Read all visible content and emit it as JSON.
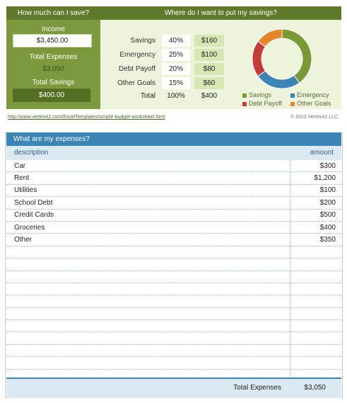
{
  "savings_panel": {
    "title": "How much can I save?",
    "income_label": "Income",
    "income_value": "$3,450.00",
    "total_expenses_label": "Total Expenses",
    "total_expenses_value": "$3,050",
    "total_savings_label": "Total Savings",
    "total_savings_value": "$400.00"
  },
  "allocation_panel": {
    "title": "Where do I want to put my savings?",
    "rows": [
      {
        "label": "Savings",
        "pct": "40%",
        "amount": "$160"
      },
      {
        "label": "Emergency",
        "pct": "25%",
        "amount": "$100"
      },
      {
        "label": "Debt Payoff",
        "pct": "20%",
        "amount": "$80"
      },
      {
        "label": "Other Goals",
        "pct": "15%",
        "amount": "$60"
      }
    ],
    "total_label": "Total",
    "total_pct": "100%",
    "total_amount": "$400"
  },
  "chart_data": {
    "type": "pie",
    "categories": [
      "Savings",
      "Emergency",
      "Debt Payoff",
      "Other Goals"
    ],
    "values": [
      40,
      25,
      20,
      15
    ],
    "colors": [
      "#7a9a35",
      "#3b84b5",
      "#c43b3b",
      "#e5862b"
    ],
    "title": "",
    "donut": true,
    "legend_position": "bottom"
  },
  "footer_links": {
    "url": "http://www.vertex42.com/ExcelTemplates/simple-budget-worksheet.html",
    "copyright": "© 2013 Vertex42 LLC"
  },
  "expenses": {
    "title": "What are my expenses?",
    "col_description": "description",
    "col_amount": "amount",
    "rows": [
      {
        "description": "Car",
        "amount": "$300"
      },
      {
        "description": "Rent",
        "amount": "$1,200"
      },
      {
        "description": "Utilities",
        "amount": "$100"
      },
      {
        "description": "School Debt",
        "amount": "$200"
      },
      {
        "description": "Credit Cards",
        "amount": "$500"
      },
      {
        "description": "Groceries",
        "amount": "$400"
      },
      {
        "description": "Other",
        "amount": "$350"
      },
      {
        "description": "",
        "amount": ""
      },
      {
        "description": "",
        "amount": ""
      },
      {
        "description": "",
        "amount": ""
      },
      {
        "description": "",
        "amount": ""
      },
      {
        "description": "",
        "amount": ""
      },
      {
        "description": "",
        "amount": ""
      },
      {
        "description": "",
        "amount": ""
      },
      {
        "description": "",
        "amount": ""
      },
      {
        "description": "",
        "amount": ""
      },
      {
        "description": "",
        "amount": ""
      },
      {
        "description": "",
        "amount": ""
      }
    ],
    "total_label": "Total Expenses",
    "total_value": "$3,050"
  }
}
